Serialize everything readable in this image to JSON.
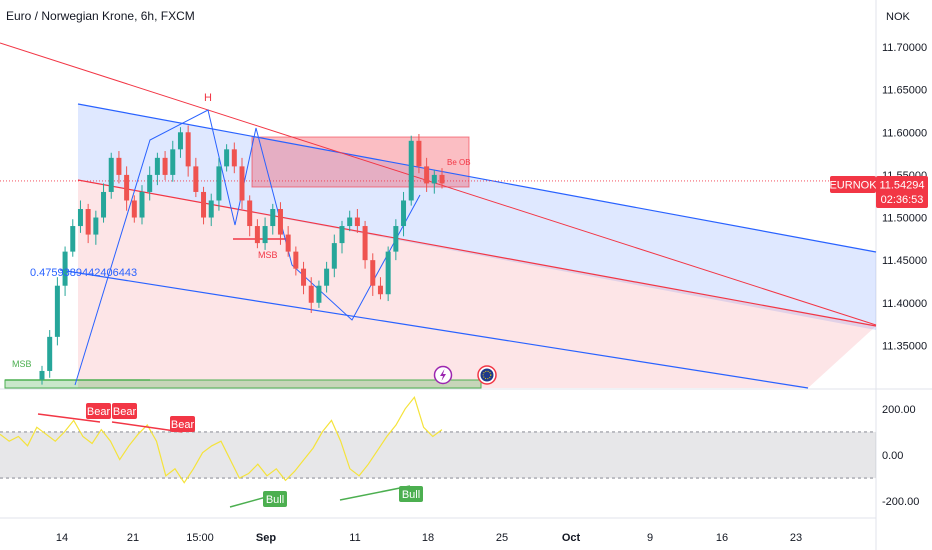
{
  "header": {
    "title": "Euro / Norwegian Krone, 6h, FXCM",
    "currency": "NOK"
  },
  "price_axis": {
    "ticks": [
      "11.70000",
      "11.65000",
      "11.60000",
      "11.55000",
      "11.50000",
      "11.45000",
      "11.40000",
      "11.35000"
    ],
    "current_symbol": "EURNOK",
    "current_price": "11.54294",
    "countdown": "02:36:53"
  },
  "oscillator_axis": {
    "ticks": [
      "200.00",
      "0.00",
      "-200.00"
    ]
  },
  "time_axis": {
    "ticks": [
      "14",
      "21",
      "15:00",
      "Sep",
      "11",
      "18",
      "25",
      "Oct",
      "9",
      "16",
      "23"
    ]
  },
  "annotations": {
    "head_label": "H",
    "msb_main": "MSB",
    "msb_left": "MSB",
    "bear_ob": "Be OB",
    "fib_value": "0.4759389442406443",
    "bear_1": "Bear",
    "bear_2": "Bear",
    "bear_3": "Bear",
    "bull_1": "Bull",
    "bull_2": "Bull"
  },
  "colors": {
    "up": "#26a69a",
    "down": "#ef5350",
    "channel_blue": "#2962ff",
    "channel_red": "#f23645",
    "bull_green": "#4caf50",
    "osc_line": "#f5e33b"
  },
  "chart_data": {
    "type": "candlestick",
    "symbol": "EURNOK",
    "timeframe": "6h",
    "ylim": [
      11.3,
      11.72
    ],
    "close_path": [
      11.32,
      11.36,
      11.42,
      11.46,
      11.49,
      11.51,
      11.48,
      11.5,
      11.53,
      11.57,
      11.55,
      11.52,
      11.5,
      11.53,
      11.55,
      11.57,
      11.55,
      11.58,
      11.6,
      11.56,
      11.53,
      11.5,
      11.52,
      11.56,
      11.58,
      11.56,
      11.52,
      11.49,
      11.47,
      11.49,
      11.51,
      11.48,
      11.46,
      11.44,
      11.42,
      11.4,
      11.42,
      11.44,
      11.47,
      11.49,
      11.5,
      11.49,
      11.45,
      11.42,
      11.41,
      11.46,
      11.49,
      11.52,
      11.59,
      11.56,
      11.54,
      11.55,
      11.54
    ],
    "oscillator": {
      "ylim": [
        -260,
        260
      ],
      "values": [
        90,
        60,
        80,
        40,
        120,
        90,
        60,
        100,
        150,
        80,
        50,
        110,
        60,
        -20,
        40,
        90,
        130,
        60,
        -90,
        -60,
        -120,
        -60,
        10,
        40,
        60,
        -20,
        -100,
        -80,
        -40,
        -90,
        -60,
        -110,
        -70,
        -20,
        30,
        100,
        150,
        60,
        -60,
        -90,
        -40,
        20,
        80,
        130,
        200,
        250,
        120,
        80,
        110
      ]
    }
  }
}
